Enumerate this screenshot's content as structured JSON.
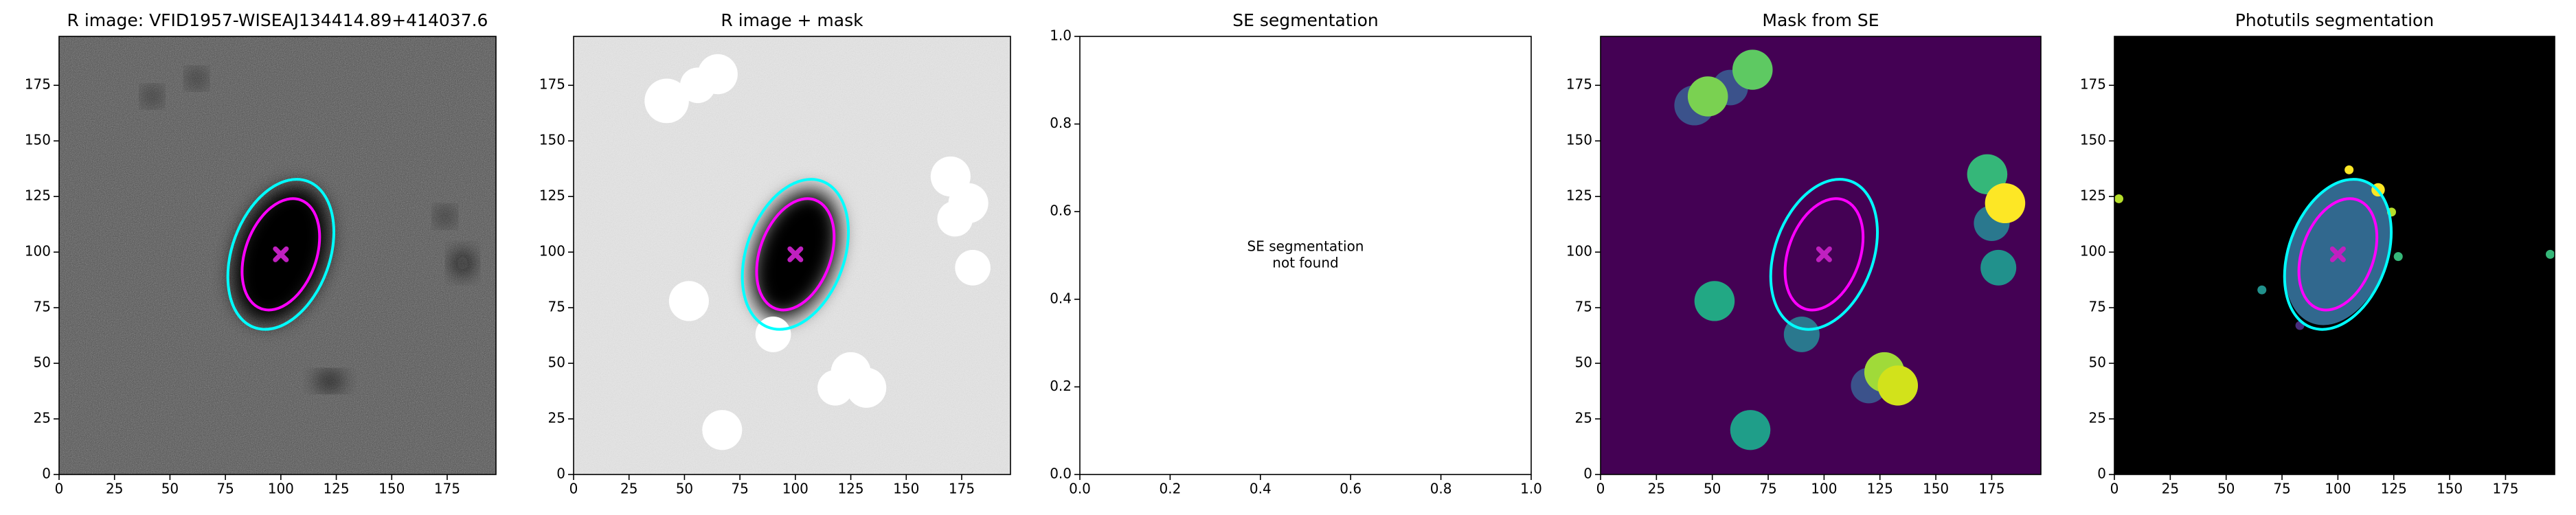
{
  "chart_data": [
    {
      "type": "image",
      "title": "R image: VFID1957-WISEAJ134414.89+414037.6",
      "background": "#4d4d4d",
      "noise": 0.55,
      "xlim": [
        0,
        197
      ],
      "ylim": [
        0,
        197
      ],
      "xticks": [
        0,
        25,
        50,
        75,
        100,
        125,
        150,
        175
      ],
      "yticks": [
        0,
        25,
        50,
        75,
        100,
        125,
        150,
        175
      ],
      "regions": [
        {
          "x": 100,
          "y": 99,
          "r": 20,
          "ry": 32,
          "angle": 20,
          "color": "#000000",
          "blur": true
        },
        {
          "x": 122,
          "y": 42,
          "r": 6,
          "ry": 3,
          "angle": 0,
          "color": "#111111",
          "blur": true
        },
        {
          "x": 182,
          "y": 95,
          "r": 4,
          "ry": 5,
          "angle": 0,
          "color": "#111111",
          "blur": true
        },
        {
          "x": 42,
          "y": 170,
          "r": 3,
          "ry": 3,
          "angle": 0,
          "color": "#111111",
          "blur": true
        },
        {
          "x": 62,
          "y": 178,
          "r": 3,
          "ry": 3,
          "angle": 0,
          "color": "#111111",
          "blur": true
        },
        {
          "x": 174,
          "y": 116,
          "r": 3,
          "ry": 3,
          "angle": 0,
          "color": "#111111",
          "blur": true
        }
      ],
      "ellipses": [
        {
          "x": 100,
          "y": 99,
          "rx": 16,
          "ry": 26,
          "angle": 20,
          "color": "#ff00ff"
        },
        {
          "x": 100,
          "y": 99,
          "rx": 22,
          "ry": 35,
          "angle": 20,
          "color": "#00ffff"
        }
      ],
      "center_marker": {
        "x": 100,
        "y": 99,
        "color": "#c020c0"
      }
    },
    {
      "type": "image",
      "title": "R image + mask",
      "background": "#e6e6e6",
      "noise": 0.25,
      "xlim": [
        0,
        197
      ],
      "ylim": [
        0,
        197
      ],
      "xticks": [
        0,
        25,
        50,
        75,
        100,
        125,
        150,
        175
      ],
      "yticks": [
        0,
        25,
        50,
        75,
        100,
        125,
        150,
        175
      ],
      "regions": [
        {
          "x": 100,
          "y": 99,
          "r": 18,
          "ry": 30,
          "angle": 20,
          "color": "#000000",
          "blur": true
        },
        {
          "x": 42,
          "y": 168,
          "r": 10,
          "color": "#ffffff"
        },
        {
          "x": 56,
          "y": 175,
          "r": 8,
          "color": "#ffffff"
        },
        {
          "x": 65,
          "y": 180,
          "r": 9,
          "color": "#ffffff"
        },
        {
          "x": 170,
          "y": 134,
          "r": 9,
          "color": "#ffffff"
        },
        {
          "x": 178,
          "y": 122,
          "r": 9,
          "color": "#ffffff"
        },
        {
          "x": 172,
          "y": 115,
          "r": 8,
          "color": "#ffffff"
        },
        {
          "x": 180,
          "y": 93,
          "r": 8,
          "color": "#ffffff"
        },
        {
          "x": 52,
          "y": 78,
          "r": 9,
          "color": "#ffffff"
        },
        {
          "x": 90,
          "y": 63,
          "r": 8,
          "color": "#ffffff"
        },
        {
          "x": 67,
          "y": 20,
          "r": 9,
          "color": "#ffffff"
        },
        {
          "x": 125,
          "y": 46,
          "r": 9,
          "color": "#ffffff"
        },
        {
          "x": 132,
          "y": 39,
          "r": 9,
          "color": "#ffffff"
        },
        {
          "x": 118,
          "y": 39,
          "r": 8,
          "color": "#ffffff"
        }
      ],
      "ellipses": [
        {
          "x": 100,
          "y": 99,
          "rx": 16,
          "ry": 26,
          "angle": 20,
          "color": "#ff00ff"
        },
        {
          "x": 100,
          "y": 99,
          "rx": 22,
          "ry": 35,
          "angle": 20,
          "color": "#00ffff"
        }
      ],
      "center_marker": {
        "x": 100,
        "y": 99,
        "color": "#c020c0"
      }
    },
    {
      "type": "empty",
      "title": "SE segmentation",
      "annotation": [
        "SE segmentation",
        "not found"
      ],
      "xlim": [
        0,
        1
      ],
      "ylim": [
        0,
        1
      ],
      "xticks": [
        {
          "value": 0,
          "label": "0.0"
        },
        {
          "value": 0.2,
          "label": "0.2"
        },
        {
          "value": 0.4,
          "label": "0.4"
        },
        {
          "value": 0.6,
          "label": "0.6"
        },
        {
          "value": 0.8,
          "label": "0.8"
        },
        {
          "value": 1,
          "label": "1.0"
        }
      ],
      "yticks": [
        {
          "value": 0,
          "label": "0.0"
        },
        {
          "value": 0.2,
          "label": "0.2"
        },
        {
          "value": 0.4,
          "label": "0.4"
        },
        {
          "value": 0.6,
          "label": "0.6"
        },
        {
          "value": 0.8,
          "label": "0.8"
        },
        {
          "value": 1,
          "label": "1.0"
        }
      ]
    },
    {
      "type": "image",
      "title": "Mask from SE",
      "background": "#440154",
      "xlim": [
        0,
        197
      ],
      "ylim": [
        0,
        197
      ],
      "xticks": [
        0,
        25,
        50,
        75,
        100,
        125,
        150,
        175
      ],
      "yticks": [
        0,
        25,
        50,
        75,
        100,
        125,
        150,
        175
      ],
      "regions": [
        {
          "x": 42,
          "y": 166,
          "r": 9,
          "color": "#3b528b"
        },
        {
          "x": 58,
          "y": 174,
          "r": 8,
          "color": "#3b528b"
        },
        {
          "x": 48,
          "y": 170,
          "r": 9,
          "color": "#7ad151"
        },
        {
          "x": 68,
          "y": 182,
          "r": 9,
          "color": "#5ec962"
        },
        {
          "x": 173,
          "y": 135,
          "r": 9,
          "color": "#35b779"
        },
        {
          "x": 175,
          "y": 113,
          "r": 8,
          "color": "#2a788e"
        },
        {
          "x": 181,
          "y": 122,
          "r": 9,
          "color": "#fde725"
        },
        {
          "x": 178,
          "y": 93,
          "r": 8,
          "color": "#21918c"
        },
        {
          "x": 51,
          "y": 78,
          "r": 9,
          "color": "#22a884"
        },
        {
          "x": 90,
          "y": 63,
          "r": 8,
          "color": "#2a788e"
        },
        {
          "x": 67,
          "y": 20,
          "r": 9,
          "color": "#1f9e89"
        },
        {
          "x": 120,
          "y": 40,
          "r": 8,
          "color": "#3b528b"
        },
        {
          "x": 127,
          "y": 46,
          "r": 9,
          "color": "#a0da39"
        },
        {
          "x": 133,
          "y": 40,
          "r": 9,
          "color": "#d2e21b"
        }
      ],
      "ellipses": [
        {
          "x": 100,
          "y": 99,
          "rx": 16,
          "ry": 26,
          "angle": 20,
          "color": "#ff00ff"
        },
        {
          "x": 100,
          "y": 99,
          "rx": 22,
          "ry": 35,
          "angle": 20,
          "color": "#00ffff"
        }
      ],
      "center_marker": {
        "x": 100,
        "y": 99,
        "color": "#c020c0"
      }
    },
    {
      "type": "image",
      "title": "Photutils segmentation",
      "background": "#000000",
      "xlim": [
        0,
        197
      ],
      "ylim": [
        0,
        197
      ],
      "xticks": [
        0,
        25,
        50,
        75,
        100,
        125,
        150,
        175
      ],
      "yticks": [
        0,
        25,
        50,
        75,
        100,
        125,
        150,
        175
      ],
      "regions": [
        {
          "x": 100,
          "y": 100,
          "r": 22,
          "ry": 34,
          "angle": 20,
          "color": "#31688e"
        },
        {
          "x": 105,
          "y": 137,
          "r": 2,
          "color": "#fde725"
        },
        {
          "x": 118,
          "y": 128,
          "r": 3,
          "color": "#fde725"
        },
        {
          "x": 124,
          "y": 118,
          "r": 2,
          "color": "#b5de2b"
        },
        {
          "x": 127,
          "y": 98,
          "r": 2,
          "color": "#35b779"
        },
        {
          "x": 66,
          "y": 83,
          "r": 2,
          "color": "#21918c"
        },
        {
          "x": 2,
          "y": 124,
          "r": 2,
          "color": "#b5de2b"
        },
        {
          "x": 195,
          "y": 99,
          "r": 2,
          "color": "#35b779"
        },
        {
          "x": 83,
          "y": 67,
          "r": 2,
          "color": "#472d7b"
        }
      ],
      "ellipses": [
        {
          "x": 100,
          "y": 99,
          "rx": 16,
          "ry": 26,
          "angle": 20,
          "color": "#ff00ff"
        },
        {
          "x": 100,
          "y": 99,
          "rx": 22,
          "ry": 35,
          "angle": 20,
          "color": "#00ffff"
        }
      ],
      "center_marker": {
        "x": 100,
        "y": 99,
        "color": "#c020c0"
      }
    }
  ]
}
